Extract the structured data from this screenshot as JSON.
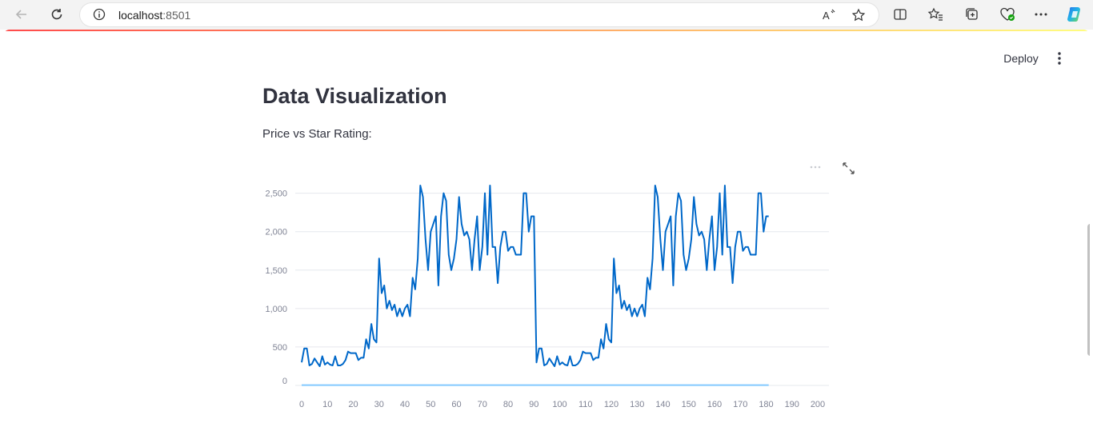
{
  "browser": {
    "url_host": "localhost",
    "url_port": ":8501"
  },
  "app": {
    "deploy_label": "Deploy",
    "title": "Data Visualization",
    "caption": "Price vs Star Rating:"
  },
  "colors": {
    "price": "#0068c9",
    "star_rating": "#83c9ff",
    "grid": "#e6e8ee",
    "axis_text": "#808495"
  },
  "chart_data": {
    "type": "line",
    "title": "",
    "xlabel": "",
    "ylabel": "",
    "xlim": [
      0,
      200
    ],
    "ylim": [
      0,
      2600
    ],
    "x_ticks": [
      0,
      10,
      20,
      30,
      40,
      50,
      60,
      70,
      80,
      90,
      100,
      110,
      120,
      130,
      140,
      150,
      160,
      170,
      180,
      190,
      200
    ],
    "y_ticks": [
      0,
      500,
      1000,
      1500,
      2000,
      2500
    ],
    "y_tick_labels": [
      "0",
      "500",
      "1,000",
      "1,500",
      "2,000",
      "2,500"
    ],
    "grid": true,
    "legend_position": "bottom-left",
    "series": [
      {
        "name": "price",
        "x": [
          0,
          1,
          2,
          3,
          4,
          5,
          6,
          7,
          8,
          9,
          10,
          11,
          12,
          13,
          14,
          15,
          16,
          17,
          18,
          19,
          20,
          21,
          22,
          23,
          24,
          25,
          26,
          27,
          28,
          29,
          30,
          31,
          32,
          33,
          34,
          35,
          36,
          37,
          38,
          39,
          40,
          41,
          42,
          43,
          44,
          45,
          46,
          47,
          48,
          49,
          50,
          51,
          52,
          53,
          54,
          55,
          56,
          57,
          58,
          59,
          60,
          61,
          62,
          63,
          64,
          65,
          66,
          67,
          68,
          69,
          70,
          71,
          72,
          73,
          74,
          75,
          76,
          77,
          78,
          79,
          80,
          81,
          82,
          83,
          84,
          85,
          86,
          87,
          88,
          89,
          90,
          91,
          92,
          93,
          94,
          95,
          96,
          97,
          98,
          99,
          100,
          101,
          102,
          103,
          104,
          105,
          106,
          107,
          108,
          109,
          110,
          111,
          112,
          113,
          114,
          115,
          116,
          117,
          118,
          119,
          120,
          121,
          122,
          123,
          124,
          125,
          126,
          127,
          128,
          129,
          130,
          131,
          132,
          133,
          134,
          135,
          136,
          137,
          138,
          139,
          140,
          141,
          142,
          143,
          144,
          145,
          146,
          147,
          148,
          149,
          150,
          151,
          152,
          153,
          154,
          155,
          156,
          157,
          158,
          159,
          160,
          161,
          162,
          163,
          164,
          165,
          166,
          167,
          168,
          169,
          170,
          171,
          172,
          173,
          174,
          175,
          176,
          177,
          178,
          179,
          180,
          181
        ],
        "values": [
          300,
          480,
          480,
          260,
          280,
          350,
          300,
          250,
          380,
          270,
          300,
          270,
          260,
          380,
          260,
          260,
          280,
          330,
          440,
          420,
          420,
          420,
          330,
          360,
          360,
          600,
          480,
          800,
          600,
          560,
          1650,
          1200,
          1300,
          1000,
          1100,
          980,
          1050,
          900,
          1000,
          900,
          1000,
          1050,
          900,
          1400,
          1250,
          1650,
          2600,
          2450,
          1900,
          1500,
          2000,
          2100,
          2200,
          1300,
          2200,
          2500,
          2400,
          1700,
          1500,
          1650,
          1900,
          2450,
          2100,
          1950,
          2000,
          1900,
          1500,
          1900,
          2200,
          1500,
          1800,
          2500,
          1700,
          2600,
          1800,
          1800,
          1330,
          1800,
          2000,
          2000,
          1750,
          1800,
          1800,
          1700,
          1700,
          1700,
          2500,
          2500,
          2000,
          2200,
          2200,
          300,
          480,
          480,
          260,
          280,
          350,
          300,
          250,
          380,
          270,
          300,
          270,
          260,
          380,
          260,
          260,
          280,
          330,
          440,
          420,
          420,
          420,
          330,
          360,
          360,
          600,
          480,
          800,
          600,
          560,
          1650,
          1200,
          1300,
          1000,
          1100,
          980,
          1050,
          900,
          1000,
          900,
          1000,
          1050,
          900,
          1400,
          1250,
          1650,
          2600,
          2450,
          1900,
          1500,
          2000,
          2100,
          2200,
          1300,
          2200,
          2500,
          2400,
          1700,
          1500,
          1650,
          1900,
          2450,
          2100,
          1950,
          2000,
          1900,
          1500,
          1900,
          2200,
          1500,
          1800,
          2500,
          1700,
          2600,
          1800,
          1800,
          1330,
          1800,
          2000,
          2000,
          1750,
          1800,
          1800,
          1700,
          1700,
          1700,
          2500,
          2500,
          2000,
          2200,
          2200
        ]
      },
      {
        "name": "star_rating",
        "x": [
          0,
          90,
          181
        ],
        "values": [
          4,
          4,
          4
        ]
      }
    ]
  }
}
